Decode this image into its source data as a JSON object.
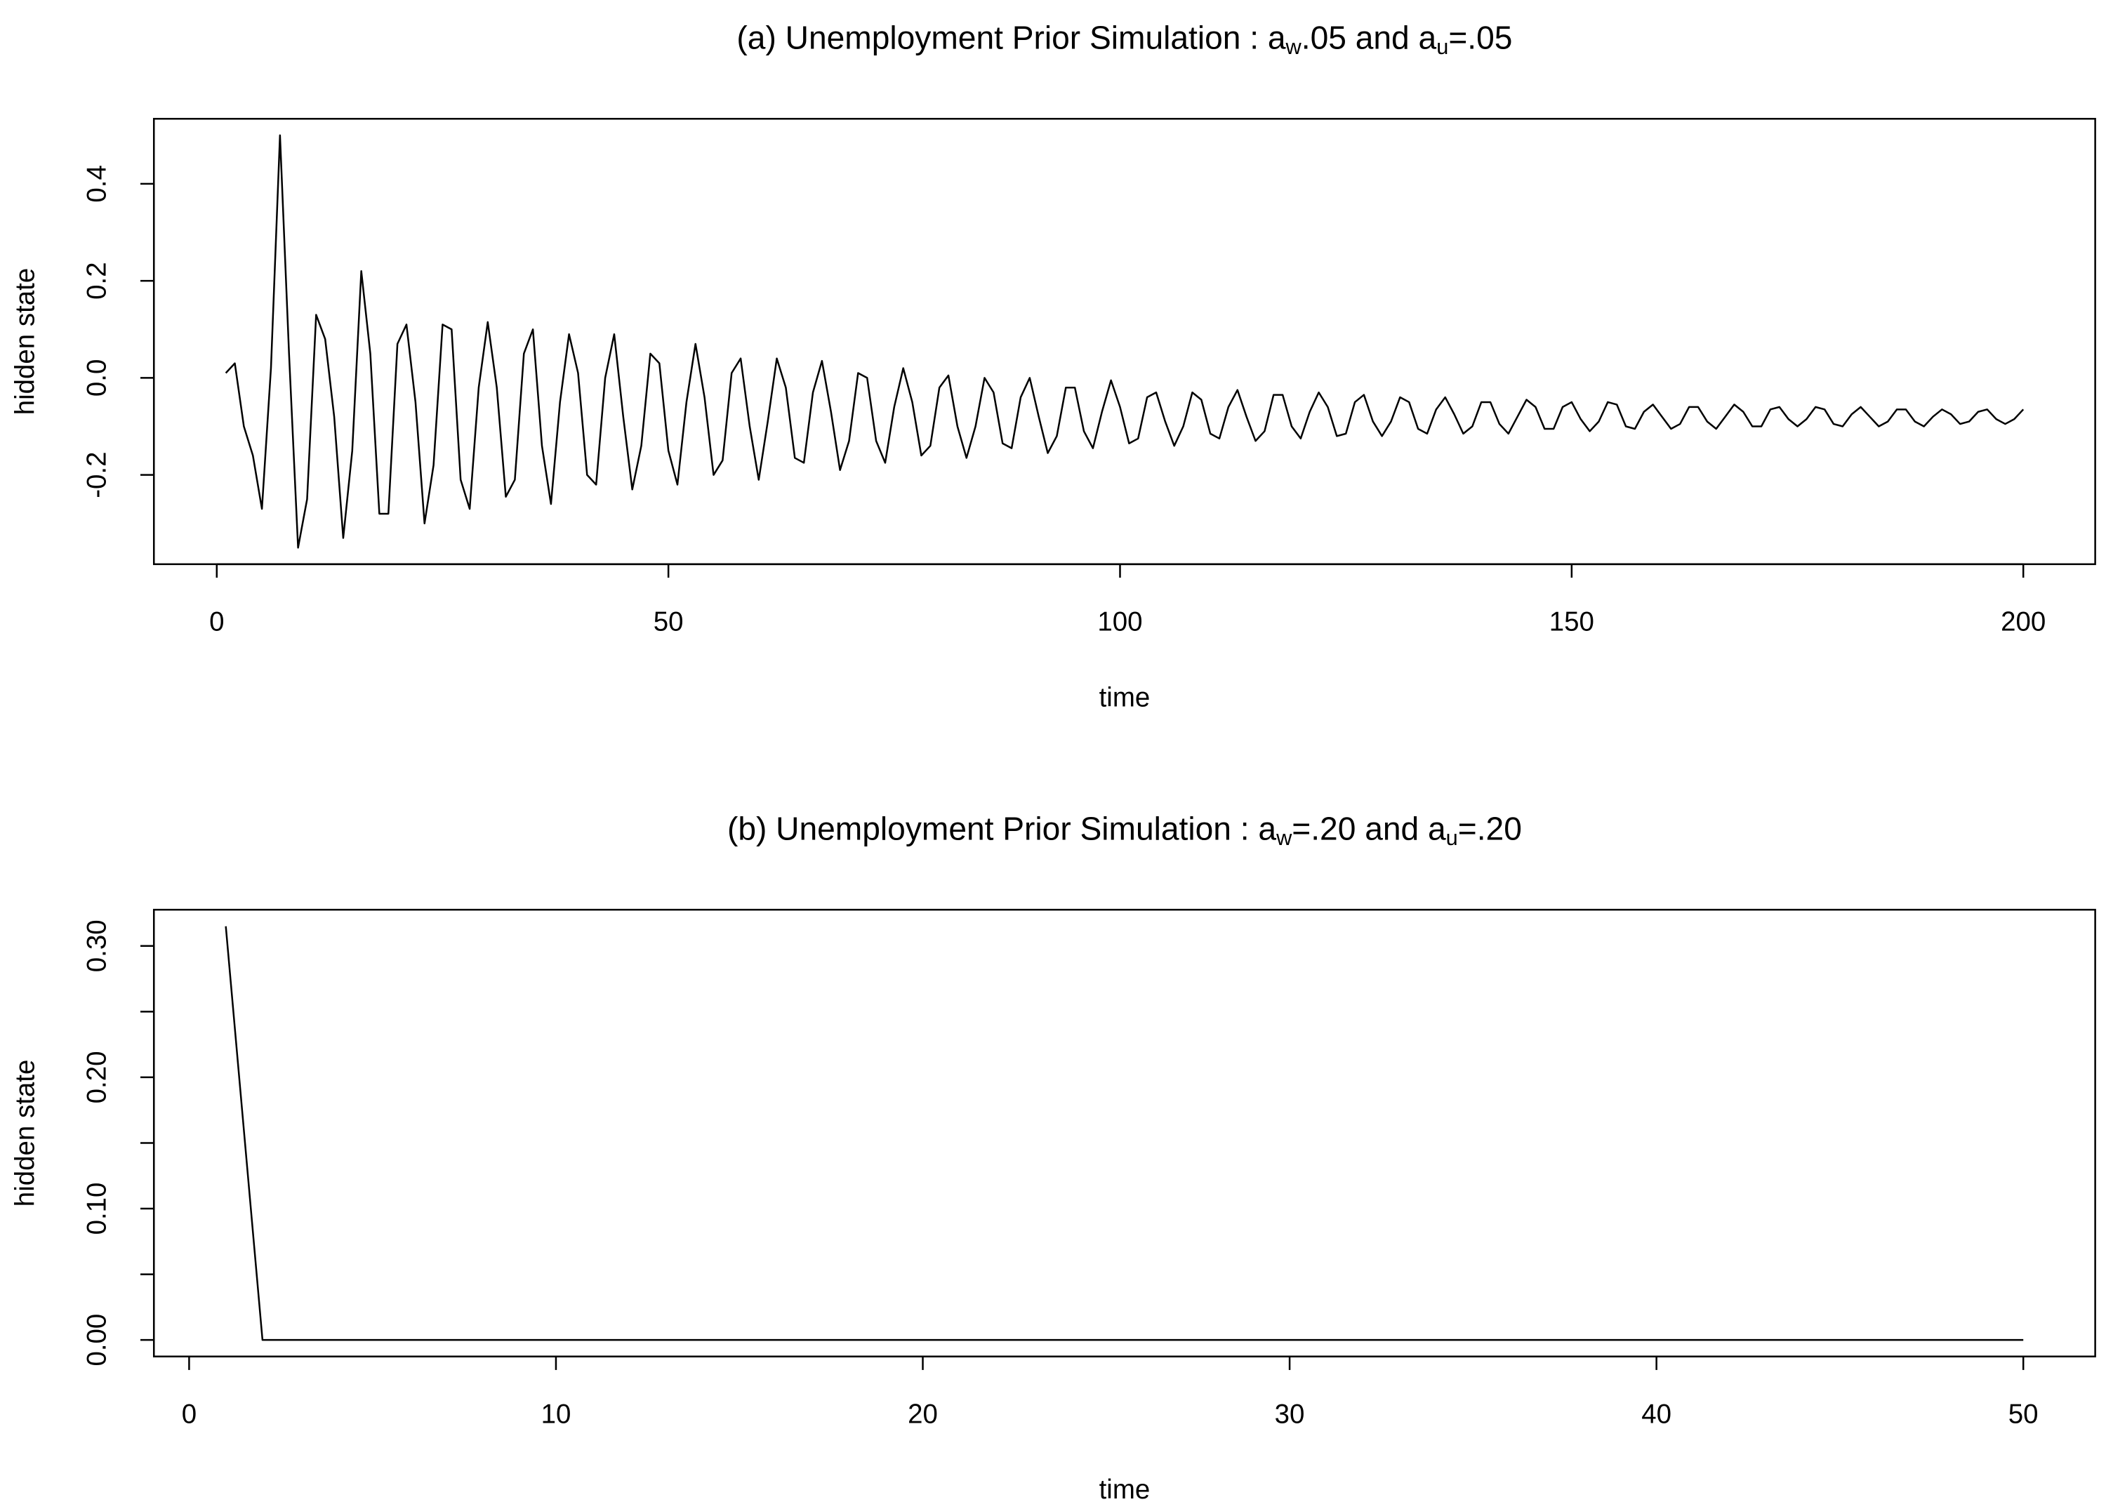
{
  "chart_data": [
    {
      "type": "line",
      "title": [
        "(a) Unemployment Prior Simulation : a",
        "w",
        ".05 and a",
        "u",
        "=.05"
      ],
      "xlabel": "time",
      "ylabel": "hidden state",
      "x": [
        1,
        2,
        3,
        4,
        5,
        6,
        7,
        8,
        9,
        10,
        11,
        12,
        13,
        14,
        15,
        16,
        17,
        18,
        19,
        20,
        21,
        22,
        23,
        24,
        25,
        26,
        27,
        28,
        29,
        30,
        31,
        32,
        33,
        34,
        35,
        36,
        37,
        38,
        39,
        40,
        41,
        42,
        43,
        44,
        45,
        46,
        47,
        48,
        49,
        50,
        51,
        52,
        53,
        54,
        55,
        56,
        57,
        58,
        59,
        60,
        61,
        62,
        63,
        64,
        65,
        66,
        67,
        68,
        69,
        70,
        71,
        72,
        73,
        74,
        75,
        76,
        77,
        78,
        79,
        80,
        81,
        82,
        83,
        84,
        85,
        86,
        87,
        88,
        89,
        90,
        91,
        92,
        93,
        94,
        95,
        96,
        97,
        98,
        99,
        100,
        101,
        102,
        103,
        104,
        105,
        106,
        107,
        108,
        109,
        110,
        111,
        112,
        113,
        114,
        115,
        116,
        117,
        118,
        119,
        120,
        121,
        122,
        123,
        124,
        125,
        126,
        127,
        128,
        129,
        130,
        131,
        132,
        133,
        134,
        135,
        136,
        137,
        138,
        139,
        140,
        141,
        142,
        143,
        144,
        145,
        146,
        147,
        148,
        149,
        150,
        151,
        152,
        153,
        154,
        155,
        156,
        157,
        158,
        159,
        160,
        161,
        162,
        163,
        164,
        165,
        166,
        167,
        168,
        169,
        170,
        171,
        172,
        173,
        174,
        175,
        176,
        177,
        178,
        179,
        180,
        181,
        182,
        183,
        184,
        185,
        186,
        187,
        188,
        189,
        190,
        191,
        192,
        193,
        194,
        195,
        196,
        197,
        198,
        199,
        200
      ],
      "values": [
        0.01,
        0.03,
        -0.1,
        -0.16,
        -0.27,
        0.02,
        0.5,
        0.05,
        -0.35,
        -0.25,
        0.13,
        0.08,
        -0.08,
        -0.33,
        -0.15,
        0.22,
        0.05,
        -0.28,
        -0.28,
        0.07,
        0.11,
        -0.05,
        -0.3,
        -0.18,
        0.11,
        0.1,
        -0.21,
        -0.27,
        -0.02,
        0.115,
        -0.02,
        -0.245,
        -0.21,
        0.05,
        0.1,
        -0.14,
        -0.26,
        -0.05,
        0.09,
        0.01,
        -0.2,
        -0.22,
        0.0,
        0.09,
        -0.08,
        -0.23,
        -0.14,
        0.05,
        0.03,
        -0.15,
        -0.22,
        -0.05,
        0.07,
        -0.04,
        -0.2,
        -0.17,
        0.01,
        0.04,
        -0.1,
        -0.21,
        -0.09,
        0.04,
        -0.02,
        -0.165,
        -0.175,
        -0.03,
        0.035,
        -0.07,
        -0.19,
        -0.13,
        0.01,
        0.0,
        -0.13,
        -0.175,
        -0.06,
        0.02,
        -0.05,
        -0.16,
        -0.14,
        -0.02,
        0.005,
        -0.1,
        -0.165,
        -0.1,
        0.0,
        -0.03,
        -0.135,
        -0.145,
        -0.04,
        0.0,
        -0.08,
        -0.155,
        -0.12,
        -0.02,
        -0.02,
        -0.11,
        -0.145,
        -0.07,
        -0.005,
        -0.06,
        -0.135,
        -0.125,
        -0.04,
        -0.03,
        -0.09,
        -0.14,
        -0.1,
        -0.03,
        -0.045,
        -0.115,
        -0.125,
        -0.06,
        -0.025,
        -0.08,
        -0.13,
        -0.11,
        -0.035,
        -0.035,
        -0.1,
        -0.125,
        -0.07,
        -0.03,
        -0.06,
        -0.12,
        -0.115,
        -0.05,
        -0.035,
        -0.09,
        -0.12,
        -0.09,
        -0.04,
        -0.05,
        -0.105,
        -0.115,
        -0.065,
        -0.04,
        -0.075,
        -0.115,
        -0.1,
        -0.05,
        -0.05,
        -0.095,
        -0.115,
        -0.08,
        -0.045,
        -0.06,
        -0.105,
        -0.105,
        -0.06,
        -0.05,
        -0.085,
        -0.11,
        -0.09,
        -0.05,
        -0.055,
        -0.1,
        -0.105,
        -0.07,
        -0.055,
        -0.08,
        -0.105,
        -0.095,
        -0.06,
        -0.06,
        -0.09,
        -0.105,
        -0.08,
        -0.055,
        -0.07,
        -0.1,
        -0.1,
        -0.065,
        -0.06,
        -0.085,
        -0.1,
        -0.085,
        -0.06,
        -0.065,
        -0.095,
        -0.1,
        -0.075,
        -0.06,
        -0.08,
        -0.1,
        -0.09,
        -0.065,
        -0.065,
        -0.09,
        -0.1,
        -0.08,
        -0.065,
        -0.075,
        -0.095,
        -0.09,
        -0.07,
        -0.065,
        -0.085,
        -0.095,
        -0.085,
        -0.065
      ],
      "color": "#000000",
      "xlim": [
        -6.96,
        207.96
      ],
      "xticks": [
        0,
        50,
        100,
        150,
        200
      ],
      "ylim": [
        -0.384,
        0.534
      ],
      "yticks": [
        -0.2,
        {
          "value": 0.0,
          "label": "0.0"
        },
        0.2,
        0.4
      ]
    },
    {
      "type": "line",
      "title": [
        "(b) Unemployment Prior Simulation : a",
        "w",
        "=.20 and a",
        "u",
        "=.20"
      ],
      "xlabel": "time",
      "ylabel": "hidden state",
      "x": [
        1,
        2,
        3,
        4,
        5,
        6,
        7,
        8,
        9,
        10,
        11,
        12,
        13,
        14,
        15,
        16,
        17,
        18,
        19,
        20,
        21,
        22,
        23,
        24,
        25,
        26,
        27,
        28,
        29,
        30,
        31,
        32,
        33,
        34,
        35,
        36,
        37,
        38,
        39,
        40,
        41,
        42,
        43,
        44,
        45,
        46,
        47,
        48,
        49,
        50
      ],
      "values": [
        0.315,
        0,
        0,
        0,
        0,
        0,
        0,
        0,
        0,
        0,
        0,
        0,
        0,
        0,
        0,
        0,
        0,
        0,
        0,
        0,
        0,
        0,
        0,
        0,
        0,
        0,
        0,
        0,
        0,
        0,
        0,
        0,
        0,
        0,
        0,
        0,
        0,
        0,
        0,
        0,
        0,
        0,
        0,
        0,
        0,
        0,
        0,
        0,
        0,
        0
      ],
      "color": "#000000",
      "xlim": [
        -0.96,
        51.96
      ],
      "xticks": [
        0,
        10,
        20,
        30,
        40,
        50
      ],
      "ylim": [
        -0.0126,
        0.3276
      ],
      "yticks": [
        {
          "value": 0.0,
          "label": "0.00"
        },
        {
          "value": 0.1,
          "label": "0.10"
        },
        {
          "value": 0.2,
          "label": "0.20"
        },
        {
          "value": 0.3,
          "label": "0.30"
        }
      ],
      "yminor_ticks": [
        0.05,
        0.15,
        0.25
      ]
    }
  ]
}
